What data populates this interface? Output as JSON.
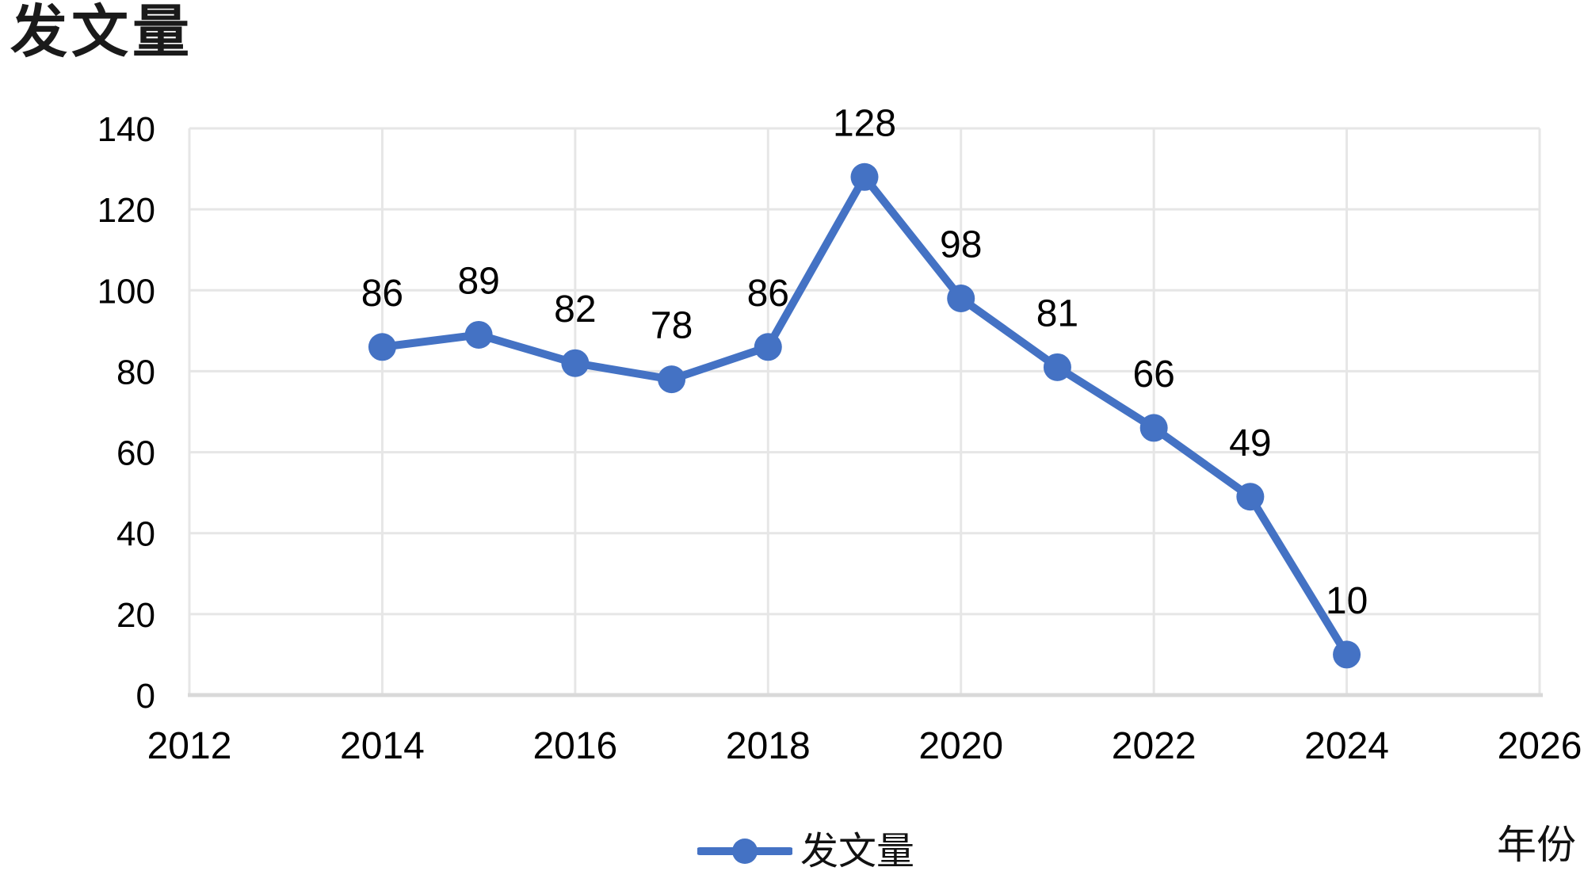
{
  "title": "发文量",
  "legend": {
    "label": "发文量"
  },
  "colors": {
    "series": "#4472C4",
    "grid": "#E6E6E6",
    "axis": "#D9D9D9",
    "text": "#000000",
    "title_text": "#1A1A1A"
  },
  "chart_data": {
    "type": "line",
    "title": "发文量",
    "xlabel": "年份",
    "ylabel": "发文量",
    "x": [
      2014,
      2015,
      2016,
      2017,
      2018,
      2019,
      2020,
      2021,
      2022,
      2023,
      2024
    ],
    "series": [
      {
        "name": "发文量",
        "values": [
          86,
          89,
          82,
          78,
          86,
          128,
          98,
          81,
          66,
          49,
          10
        ]
      }
    ],
    "xlim": [
      2012,
      2026
    ],
    "ylim": [
      0,
      140
    ],
    "xticks": [
      2012,
      2014,
      2016,
      2018,
      2020,
      2022,
      2024,
      2026
    ],
    "yticks": [
      0,
      20,
      40,
      60,
      80,
      100,
      120,
      140
    ],
    "grid": true,
    "legend_position": "bottom",
    "data_labels": true,
    "marker": "circle",
    "line_width": 10,
    "marker_radius": 17.5
  }
}
